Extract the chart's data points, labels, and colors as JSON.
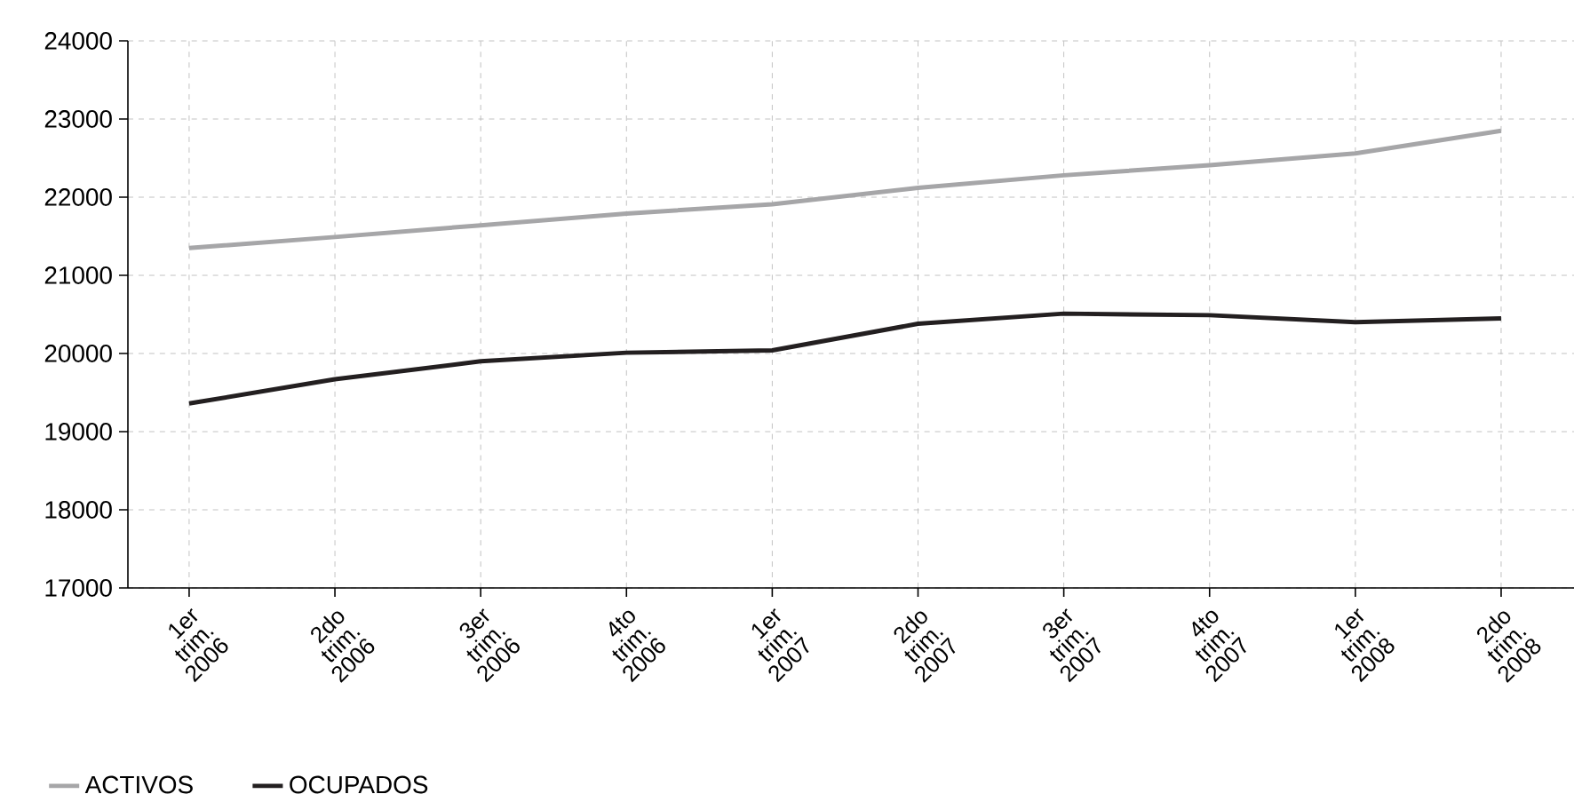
{
  "chart_data": {
    "type": "line",
    "categories": [
      "1er trim. 2006",
      "2do trim. 2006",
      "3er trim. 2006",
      "4to trim. 2006",
      "1er trim. 2007",
      "2do trim. 2007",
      "3er trim. 2007",
      "4to trim. 2007",
      "1er trim. 2008",
      "2do trim. 2008"
    ],
    "series": [
      {
        "name": "ACTIVOS",
        "color": "#a6a6a8",
        "values": [
          21350,
          21490,
          21640,
          21790,
          21910,
          22120,
          22280,
          22410,
          22560,
          22850
        ]
      },
      {
        "name": "OCUPADOS",
        "color": "#231f20",
        "values": [
          19360,
          19670,
          19900,
          20010,
          20040,
          20380,
          20510,
          20490,
          20400,
          20450
        ]
      }
    ],
    "ylim": [
      17000,
      24000
    ],
    "yticks": [
      17000,
      18000,
      19000,
      20000,
      21000,
      22000,
      23000,
      24000
    ],
    "grid": true,
    "legend": "bottom left",
    "line_style": "solid"
  }
}
